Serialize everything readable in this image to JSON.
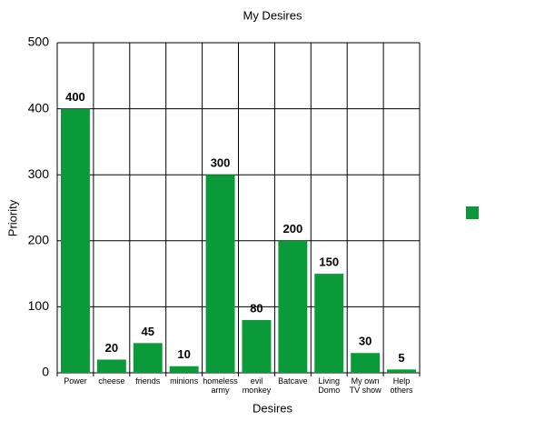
{
  "chart_data": {
    "type": "bar",
    "title": "My Desires",
    "x_label": "Desires",
    "y_label": "Priority",
    "categories": [
      "Power",
      "cheese",
      "friends",
      "minions",
      "homeless army",
      "evil monkey",
      "Batcave",
      "Living Domo",
      "My own TV show",
      "Help others"
    ],
    "series": [
      {
        "color": "#0a9a3a",
        "values": [
          400,
          20,
          45,
          10,
          300,
          80,
          200,
          150,
          30,
          5
        ]
      }
    ],
    "ylim": [
      0,
      500
    ],
    "yticks": [
      0,
      100,
      200,
      300,
      400,
      500
    ],
    "grid": true,
    "legend": "right",
    "data_labels": true
  }
}
